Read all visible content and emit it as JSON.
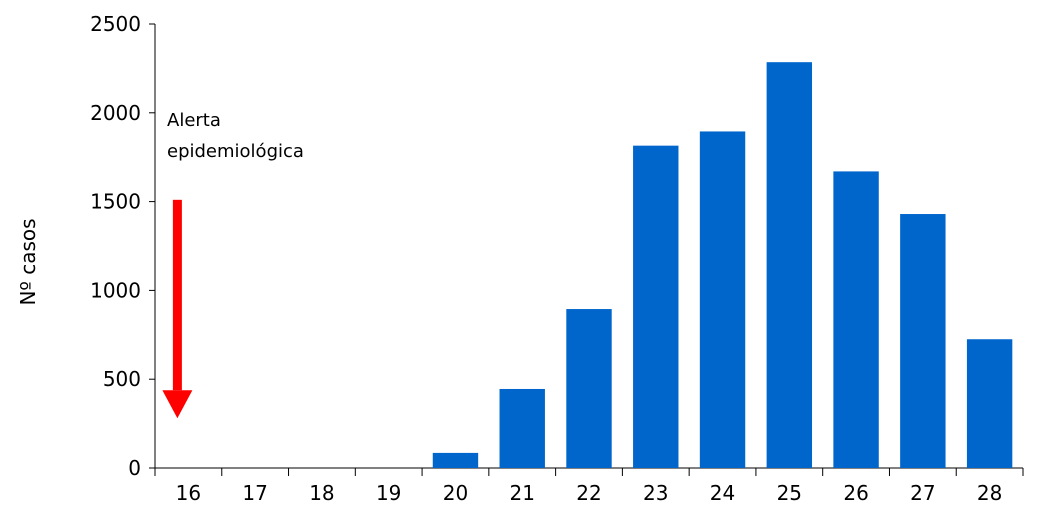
{
  "chart_data": {
    "type": "bar",
    "title": "",
    "xlabel": "",
    "ylabel": "Nº casos",
    "ylim": [
      0,
      2500
    ],
    "yticks": [
      0,
      500,
      1000,
      1500,
      2000,
      2500
    ],
    "grid": false,
    "categories": [
      "16",
      "17",
      "18",
      "19",
      "20",
      "21",
      "22",
      "23",
      "24",
      "25",
      "26",
      "27",
      "28"
    ],
    "values": [
      0,
      0,
      0,
      0,
      85,
      445,
      895,
      1815,
      1895,
      2285,
      1670,
      1430,
      725
    ],
    "bar_color": "#0066CC",
    "annotations": [
      {
        "text": "Alerta epidemiológica",
        "lines": [
          "Alerta",
          "epidemiológica"
        ]
      },
      {
        "type": "arrow",
        "category": "16",
        "from_value": 1510,
        "to_value": 280,
        "color": "#FF0000"
      }
    ]
  }
}
